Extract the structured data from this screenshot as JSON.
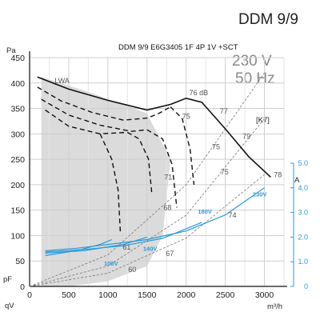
{
  "header": {
    "title": "DDM 9/9",
    "model": "DDM 9/9 E6G3405 1F 4P 1V +SCT",
    "voltage": "230 V",
    "frequency": "50 Hz",
    "badge": "[K7]"
  },
  "chart_data": {
    "type": "line",
    "xlabel": "qV",
    "x_unit": "m³/h",
    "ylabel": "pF",
    "y_unit": "Pa",
    "y2_unit": "A",
    "xlim": [
      0,
      3250
    ],
    "ylim": [
      0,
      450
    ],
    "y2lim": [
      0,
      5.0
    ],
    "x_ticks": [
      "0",
      "500",
      "1000",
      "1500",
      "2000",
      "2500",
      "3000"
    ],
    "y_ticks": [
      "0",
      "50",
      "100",
      "150",
      "200",
      "250",
      "300",
      "350",
      "400",
      "450"
    ],
    "y2_ticks": [
      "0",
      "1.0",
      "2.0",
      "3.0",
      "4.0",
      "5.0"
    ],
    "grid": true,
    "shaded_region_label": "LWA",
    "series": [
      {
        "name": "230V",
        "style": "solid",
        "x": [
          100,
          500,
          1000,
          1500,
          1800,
          2000,
          2200,
          2500,
          2800,
          3080
        ],
        "y": [
          412,
          388,
          366,
          347,
          358,
          370,
          362,
          310,
          255,
          215
        ]
      },
      {
        "name": "180V",
        "style": "dashed",
        "x": [
          100,
          400,
          800,
          1200,
          1500,
          1650,
          1800
        ],
        "y": [
          392,
          365,
          342,
          327,
          331,
          340,
          353
        ]
      },
      {
        "name": "140V",
        "style": "dashed",
        "x": [
          150,
          500,
          900,
          1300,
          1500
        ],
        "y": [
          368,
          337,
          317,
          305,
          308
        ]
      },
      {
        "name": "100V",
        "style": "dashed",
        "x": [
          200,
          500,
          900,
          1250
        ],
        "y": [
          347,
          315,
          300,
          303
        ]
      },
      {
        "name": "",
        "style": "dashed",
        "x": [
          1250,
          1400,
          1520,
          1560
        ],
        "y": [
          303,
          290,
          250,
          185
        ]
      },
      {
        "name": "",
        "style": "dashed",
        "x": [
          900,
          1050,
          1130,
          1160
        ],
        "y": [
          300,
          250,
          190,
          105
        ]
      },
      {
        "name": "",
        "style": "dashed",
        "x": [
          1500,
          1700,
          1820,
          1880
        ],
        "y": [
          308,
          290,
          240,
          155
        ]
      },
      {
        "name": "",
        "style": "dashed",
        "x": [
          1800,
          1950,
          2050,
          2100
        ],
        "y": [
          353,
          330,
          270,
          200
        ]
      }
    ],
    "current_curves": [
      {
        "name": "230V",
        "x": [
          200,
          600,
          1000,
          1500,
          2000,
          2500,
          3000
        ],
        "a": [
          1.45,
          1.55,
          1.7,
          1.9,
          2.25,
          2.9,
          4.0
        ]
      },
      {
        "name": "180V",
        "x": [
          200,
          700,
          1200,
          1700,
          2200
        ],
        "a": [
          1.4,
          1.5,
          1.65,
          1.95,
          2.6
        ]
      },
      {
        "name": "140V",
        "x": [
          200,
          700,
          1200,
          1500
        ],
        "a": [
          1.35,
          1.45,
          1.7,
          2.0
        ]
      },
      {
        "name": "100V",
        "x": [
          200,
          600,
          900,
          1050
        ],
        "a": [
          1.25,
          1.45,
          1.7,
          1.9
        ]
      }
    ],
    "system_curves": [
      {
        "x": [
          0,
          1000,
          2000,
          3000
        ],
        "y": [
          0,
          62,
          200,
          420
        ]
      },
      {
        "x": [
          0,
          1000,
          2000,
          3000
        ],
        "y": [
          0,
          40,
          140,
          330
        ]
      },
      {
        "x": [
          0,
          1000,
          2000,
          3000
        ],
        "y": [
          0,
          26,
          95,
          220
        ]
      }
    ],
    "annotations": [
      "76 dB",
      "77",
      "75",
      "79",
      "75",
      "71",
      "75",
      "68",
      "74",
      "61",
      "67",
      "60",
      "78"
    ],
    "voltage_labels": [
      "230V",
      "180V",
      "140V",
      "100V"
    ]
  },
  "colors": {
    "grid": "#cfcfcf",
    "curve": "#111111",
    "current": "#2a9ad8",
    "shade": "#cccccc"
  }
}
